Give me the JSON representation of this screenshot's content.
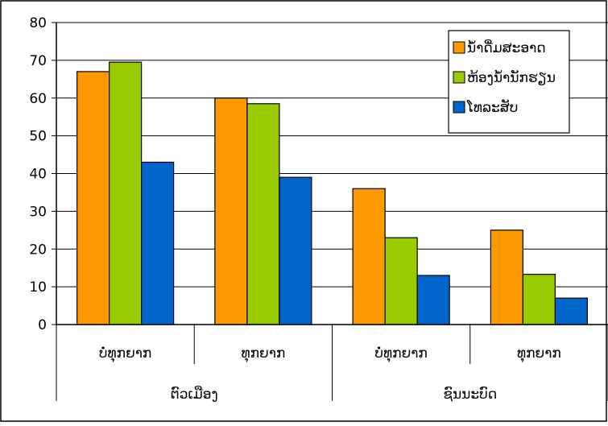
{
  "chart_data": {
    "type": "bar",
    "title": "",
    "xlabel": "",
    "ylabel": "",
    "ylim": [
      0,
      80
    ],
    "yticks": [
      "0",
      "10",
      "20",
      "30",
      "40",
      "50",
      "60",
      "70",
      "80"
    ],
    "grid": true,
    "legend_position": "top-right",
    "categories": [
      "ບໍ່ທຸກຍາກ",
      "ທຸກຍາກ",
      "ບໍ່ທຸກຍາກ",
      "ທຸກຍາກ"
    ],
    "groups": [
      {
        "label": "ຕົວເມືອງ",
        "span": [
          0,
          1
        ]
      },
      {
        "label": "ຊົນນະບົດ",
        "span": [
          2,
          3
        ]
      }
    ],
    "series": [
      {
        "name": "ນ້ຳດື່ມສະອາດ",
        "color": "#ff9900",
        "values": [
          67,
          60,
          36,
          25
        ]
      },
      {
        "name": "ຫ້ອງນ້ຳນັກຮຽນ",
        "color": "#99cc00",
        "values": [
          69.5,
          58.5,
          23,
          13.3
        ]
      },
      {
        "name": "ໂທລະສັບ",
        "color": "#0066cc",
        "values": [
          43,
          39,
          13,
          7
        ]
      }
    ]
  }
}
